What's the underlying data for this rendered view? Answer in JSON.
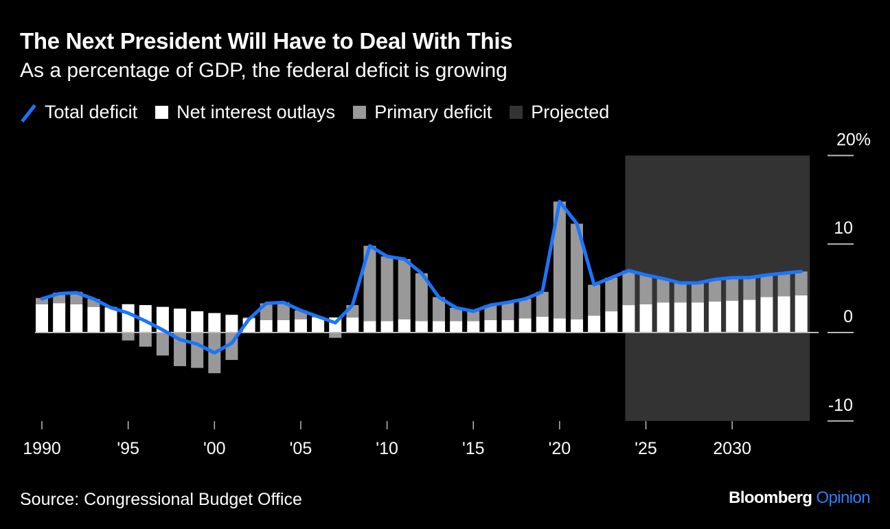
{
  "header": {
    "title": "The Next President Will Have to Deal With This",
    "subtitle": "As a percentage of GDP, the federal deficit is growing"
  },
  "legend": [
    {
      "label": "Total deficit",
      "icon": "line-swatch",
      "color": "#1a75ff"
    },
    {
      "label": "Net interest outlays",
      "icon": "square-swatch",
      "color": "#ffffff"
    },
    {
      "label": "Primary deficit",
      "icon": "square-swatch",
      "color": "#999999"
    },
    {
      "label": "Projected",
      "icon": "square-swatch",
      "color": "#333333"
    }
  ],
  "footer": {
    "source": "Source: Congressional Budget Office",
    "brand_main": "Bloomberg",
    "brand_accent": "Opinion"
  },
  "colors": {
    "background": "#000000",
    "total_deficit": "#1a75ff",
    "net_interest": "#ffffff",
    "primary_deficit": "#999999",
    "projected_region": "#333333",
    "axis": "#bbbbbb"
  },
  "chart_data": {
    "type": "bar",
    "title": "The Next President Will Have to Deal With This",
    "subtitle": "As a percentage of GDP, the federal deficit is growing",
    "xlabel": "",
    "ylabel": "% of GDP",
    "ylim": [
      -10,
      20
    ],
    "yticks": [
      {
        "value": 20,
        "label": "20%"
      },
      {
        "value": 10,
        "label": "10"
      },
      {
        "value": 0,
        "label": "0"
      },
      {
        "value": -10,
        "label": "-10"
      }
    ],
    "xticks": [
      {
        "value": 1990,
        "label": "1990"
      },
      {
        "value": 1995,
        "label": "'95"
      },
      {
        "value": 2000,
        "label": "'00"
      },
      {
        "value": 2005,
        "label": "'05"
      },
      {
        "value": 2010,
        "label": "'10"
      },
      {
        "value": 2015,
        "label": "'15"
      },
      {
        "value": 2020,
        "label": "'20"
      },
      {
        "value": 2025,
        "label": "'25"
      },
      {
        "value": 2030,
        "label": "2030"
      }
    ],
    "xlim": [
      1989.5,
      2034.5
    ],
    "projected_range": [
      2023.8,
      2034.5
    ],
    "legend_position": "top-left",
    "x": [
      1990,
      1991,
      1992,
      1993,
      1994,
      1995,
      1996,
      1997,
      1998,
      1999,
      2000,
      2001,
      2002,
      2003,
      2004,
      2005,
      2006,
      2007,
      2008,
      2009,
      2010,
      2011,
      2012,
      2013,
      2014,
      2015,
      2016,
      2017,
      2018,
      2019,
      2020,
      2021,
      2022,
      2023,
      2024,
      2025,
      2026,
      2027,
      2028,
      2029,
      2030,
      2031,
      2032,
      2033,
      2034
    ],
    "series": [
      {
        "name": "Net interest outlays",
        "type": "bar",
        "values": [
          3.2,
          3.3,
          3.2,
          2.9,
          2.8,
          3.2,
          3.1,
          2.9,
          2.7,
          2.4,
          2.2,
          2.0,
          1.6,
          1.4,
          1.4,
          1.5,
          1.7,
          1.7,
          1.7,
          1.3,
          1.3,
          1.5,
          1.3,
          1.3,
          1.3,
          1.3,
          1.4,
          1.4,
          1.6,
          1.8,
          1.6,
          1.5,
          1.9,
          2.4,
          3.1,
          3.2,
          3.4,
          3.4,
          3.4,
          3.5,
          3.6,
          3.7,
          4.0,
          4.1,
          4.2
        ]
      },
      {
        "name": "Primary deficit",
        "type": "bar",
        "values": [
          0.7,
          1.2,
          1.4,
          0.9,
          0.1,
          -0.9,
          -1.6,
          -2.6,
          -3.8,
          -4.0,
          -4.6,
          -3.1,
          0.1,
          1.9,
          2.0,
          1.0,
          0.1,
          -0.6,
          1.4,
          8.5,
          7.3,
          6.8,
          5.4,
          2.7,
          1.5,
          1.1,
          1.7,
          2.0,
          2.2,
          2.8,
          13.2,
          10.8,
          3.5,
          3.8,
          3.9,
          3.3,
          2.7,
          2.2,
          2.2,
          2.5,
          2.6,
          2.5,
          2.5,
          2.6,
          2.7
        ]
      },
      {
        "name": "Total deficit",
        "type": "line",
        "values": [
          3.8,
          4.4,
          4.5,
          3.8,
          2.8,
          2.2,
          1.3,
          0.3,
          -0.8,
          -1.3,
          -2.3,
          -1.2,
          1.5,
          3.3,
          3.4,
          2.5,
          1.8,
          1.1,
          3.1,
          9.8,
          8.6,
          8.3,
          6.7,
          4.0,
          2.8,
          2.4,
          3.1,
          3.4,
          3.8,
          4.6,
          14.8,
          12.3,
          5.4,
          6.2,
          7.0,
          6.5,
          6.1,
          5.6,
          5.6,
          6.0,
          6.2,
          6.2,
          6.5,
          6.7,
          6.9
        ]
      }
    ]
  }
}
